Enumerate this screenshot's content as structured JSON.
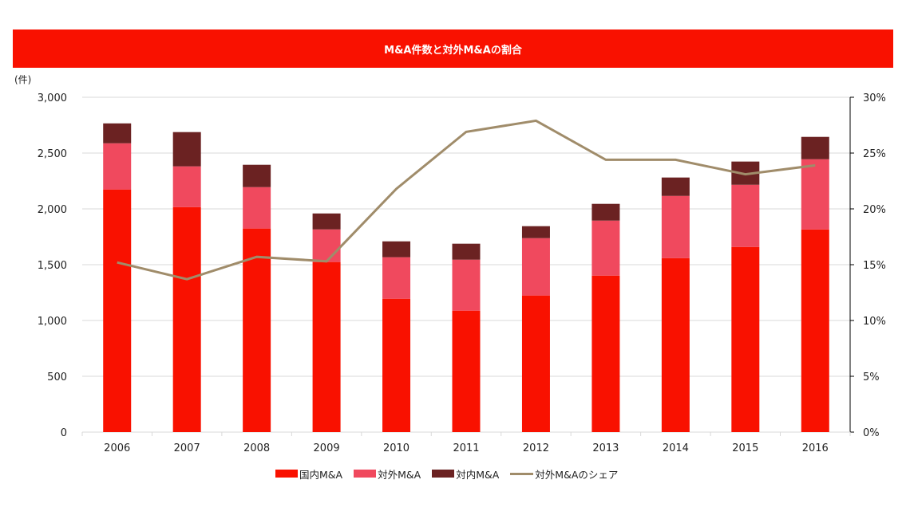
{
  "header": {
    "title": "M&A件数と対外M&Aの割合"
  },
  "colors": {
    "header_bg": "#F91100",
    "domestic": "#F91100",
    "outbound": "#F0495E",
    "inbound": "#6B2222",
    "share_line": "#A08C6A",
    "grid": "#D9D9D9"
  },
  "chart_data": {
    "type": "bar",
    "subtype": "stacked-bar-with-line",
    "title": "M&A件数と対外M&Aの割合",
    "ylabel": "(件)",
    "categories": [
      "2006",
      "2007",
      "2008",
      "2009",
      "2010",
      "2011",
      "2012",
      "2013",
      "2014",
      "2015",
      "2016"
    ],
    "series": [
      {
        "name": "国内M&A",
        "type": "bar",
        "axis": "left",
        "values": [
          2174,
          2016,
          1824,
          1524,
          1195,
          1088,
          1224,
          1402,
          1559,
          1659,
          1816
        ]
      },
      {
        "name": "対外M&A",
        "type": "bar",
        "axis": "left",
        "values": [
          414,
          365,
          371,
          292,
          372,
          457,
          514,
          493,
          557,
          557,
          629
        ]
      },
      {
        "name": "対内M&A",
        "type": "bar",
        "axis": "left",
        "values": [
          178,
          307,
          200,
          143,
          142,
          143,
          107,
          150,
          165,
          208,
          200
        ]
      },
      {
        "name": "対外M&Aのシェア",
        "type": "line",
        "axis": "right",
        "values": [
          15.2,
          13.7,
          15.7,
          15.3,
          21.8,
          26.9,
          27.9,
          24.4,
          24.4,
          23.1,
          23.9
        ]
      }
    ],
    "ylim": [
      0,
      3000
    ],
    "y2lim": [
      0,
      30
    ],
    "yticks": [
      "3,000",
      "2,500",
      "2,000",
      "1,500",
      "1,000",
      "500",
      "0"
    ],
    "y2ticks": [
      "30%",
      "25%",
      "20%",
      "15%",
      "10%",
      "5%",
      "0%"
    ],
    "grid": true,
    "legend_position": "bottom"
  }
}
